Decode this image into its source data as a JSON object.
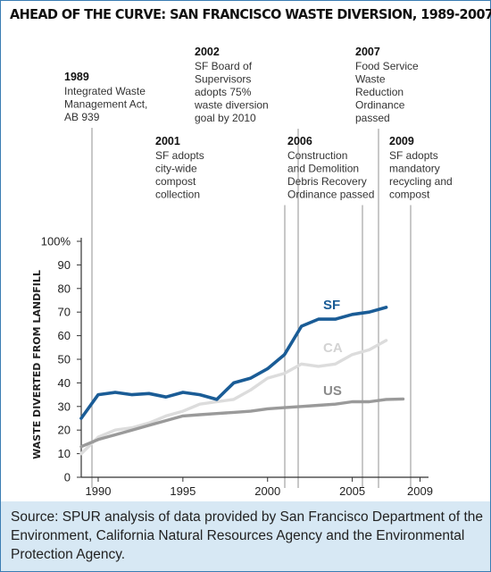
{
  "chart_data": {
    "type": "line",
    "title": "AHEAD OF THE CURVE: SAN FRANCISCO WASTE DIVERSION, 1989-2007",
    "ylabel": "WASTE DIVERTED FROM LANDFILL",
    "xlabel": "",
    "xlim": [
      1989,
      2009.5
    ],
    "ylim": [
      0,
      100
    ],
    "x_ticks": [
      1990,
      1995,
      2000,
      2005,
      2009
    ],
    "y_ticks": [
      "0",
      "10",
      "20",
      "30",
      "40",
      "50",
      "60",
      "70",
      "80",
      "90",
      "100%"
    ],
    "grid": false,
    "legend": "inline labels at line ends",
    "series": [
      {
        "name": "SF",
        "color": "#1a5c96",
        "label_color": "#1a5c96",
        "x": [
          1989,
          1990,
          1991,
          1992,
          1993,
          1994,
          1995,
          1996,
          1997,
          1998,
          1999,
          2000,
          2001,
          2002,
          2003,
          2004,
          2005,
          2006,
          2007
        ],
        "values": [
          25,
          35,
          36,
          35,
          35.5,
          34,
          36,
          35,
          33,
          40,
          42,
          46,
          52,
          64,
          67,
          67,
          69,
          70,
          72
        ]
      },
      {
        "name": "CA",
        "color": "#dcdcdc",
        "label_color": "#d3d3d3",
        "x": [
          1989,
          1990,
          1991,
          1992,
          1993,
          1994,
          1995,
          1996,
          1997,
          1998,
          1999,
          2000,
          2001,
          2002,
          2003,
          2004,
          2005,
          2006,
          2007
        ],
        "values": [
          10,
          17,
          20,
          21,
          23,
          26,
          28,
          31,
          32,
          33,
          37,
          42,
          44,
          48,
          47,
          48,
          52,
          54,
          58
        ]
      },
      {
        "name": "US",
        "color": "#9a9a9a",
        "label_color": "#8a8a8a",
        "x": [
          1989,
          1990,
          1991,
          1992,
          1993,
          1994,
          1995,
          1996,
          1997,
          1998,
          1999,
          2000,
          2001,
          2002,
          2003,
          2004,
          2005,
          2006,
          2007,
          2008
        ],
        "values": [
          13,
          16,
          18,
          20,
          22,
          24,
          26,
          26.5,
          27,
          27.5,
          28,
          29,
          29.5,
          30,
          30.5,
          31,
          32,
          32,
          33,
          33.2
        ]
      }
    ],
    "annotations": [
      {
        "year": "1989",
        "x": 1989,
        "lines": [
          "Integrated Waste",
          "Management Act,",
          "AB 939"
        ]
      },
      {
        "year": "2001",
        "x": 2001,
        "lines": [
          "SF adopts",
          "city-wide",
          "compost",
          "collection"
        ]
      },
      {
        "year": "2002",
        "x": 2002,
        "lines": [
          "SF Board of",
          "Supervisors",
          "adopts 75%",
          "waste diversion",
          "goal by 2010"
        ]
      },
      {
        "year": "2006",
        "x": 2006,
        "lines": [
          "Construction",
          "and Demolition",
          "Debris Recovery",
          "Ordinance passed"
        ]
      },
      {
        "year": "2007",
        "x": 2007,
        "lines": [
          "Food Service",
          "Waste",
          "Reduction",
          "Ordinance",
          "passed"
        ]
      },
      {
        "year": "2009",
        "x": 2009,
        "lines": [
          "SF adopts",
          "mandatory",
          "recycling and",
          "compost"
        ]
      }
    ]
  },
  "source_note": "Source: SPUR analysis of data provided by San Francisco Department of the Environment, California Natural Resources Agency and the Environmental Protection Agency."
}
